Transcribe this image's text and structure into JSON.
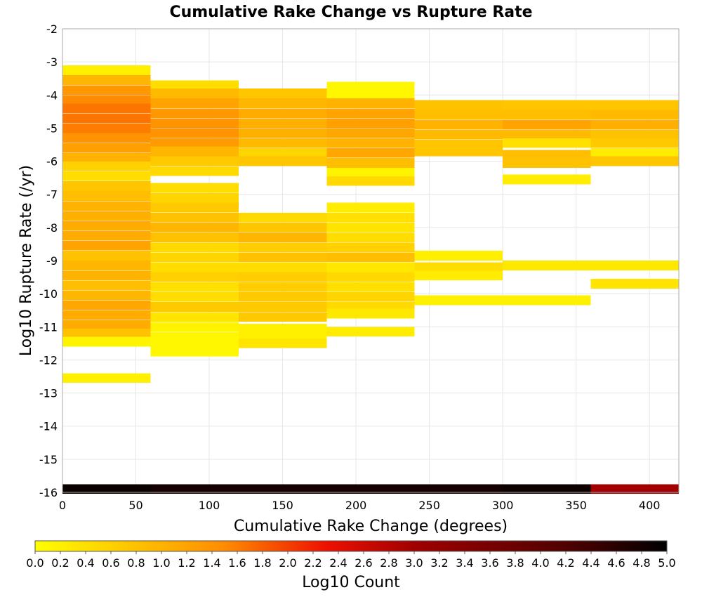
{
  "chart_data": {
    "type": "heatmap",
    "title": "Cumulative Rake Change vs Rupture Rate",
    "xlabel": "Cumulative Rake Change (degrees)",
    "ylabel": "Log10 Rupture Rate (/yr)",
    "xlim": [
      0,
      420
    ],
    "ylim": [
      -16,
      -2
    ],
    "x_ticks": [
      "0",
      "50",
      "100",
      "150",
      "200",
      "250",
      "300",
      "350",
      "400"
    ],
    "x_tick_values": [
      0,
      50,
      100,
      150,
      200,
      250,
      300,
      350,
      400
    ],
    "y_ticks": [
      "-2",
      "-3",
      "-4",
      "-5",
      "-6",
      "-7",
      "-8",
      "-9",
      "-10",
      "-11",
      "-12",
      "-13",
      "-14",
      "-15",
      "-16"
    ],
    "y_tick_values": [
      -2,
      -3,
      -4,
      -5,
      -6,
      -7,
      -8,
      -9,
      -10,
      -11,
      -12,
      -13,
      -14,
      -15,
      -16
    ],
    "grid": true,
    "x_bin_width": 60,
    "y_bin_height": 0.29,
    "colorbar": {
      "label": "Log10 Count",
      "min": 0.0,
      "max": 5.0,
      "ticks": [
        "0.0",
        "0.2",
        "0.4",
        "0.6",
        "0.8",
        "1.0",
        "1.2",
        "1.4",
        "1.6",
        "1.8",
        "2.0",
        "2.2",
        "2.4",
        "2.6",
        "2.8",
        "3.0",
        "3.2",
        "3.4",
        "3.6",
        "3.8",
        "4.0",
        "4.2",
        "4.4",
        "4.6",
        "4.8",
        "5.0"
      ],
      "tick_values": [
        0.0,
        0.2,
        0.4,
        0.6,
        0.8,
        1.0,
        1.2,
        1.4,
        1.6,
        1.8,
        2.0,
        2.2,
        2.4,
        2.6,
        2.8,
        3.0,
        3.2,
        3.4,
        3.6,
        3.8,
        4.0,
        4.2,
        4.4,
        4.6,
        4.8,
        5.0
      ],
      "color_stops": [
        {
          "v": 0.0,
          "c": "#ffff00"
        },
        {
          "v": 1.5,
          "c": "#ff8c00"
        },
        {
          "v": 2.3,
          "c": "#ee1100"
        },
        {
          "v": 3.0,
          "c": "#a00000"
        },
        {
          "v": 4.2,
          "c": "#500000"
        },
        {
          "v": 5.0,
          "c": "#000000"
        }
      ]
    },
    "columns": [
      {
        "x0": 0,
        "cells": [
          [
            -3.25,
            0.2
          ],
          [
            -3.55,
            0.95
          ],
          [
            -3.85,
            1.35
          ],
          [
            -4.15,
            1.5
          ],
          [
            -4.4,
            1.65
          ],
          [
            -4.7,
            1.65
          ],
          [
            -5.0,
            1.6
          ],
          [
            -5.3,
            1.4
          ],
          [
            -5.6,
            1.25
          ],
          [
            -5.9,
            1.0
          ],
          [
            -6.15,
            0.6
          ],
          [
            -6.45,
            0.45
          ],
          [
            -6.75,
            0.75
          ],
          [
            -7.05,
            0.85
          ],
          [
            -7.35,
            1.0
          ],
          [
            -7.65,
            1.05
          ],
          [
            -7.95,
            1.1
          ],
          [
            -8.25,
            1.1
          ],
          [
            -8.55,
            1.2
          ],
          [
            -8.85,
            0.8
          ],
          [
            -9.15,
            0.95
          ],
          [
            -9.45,
            1.0
          ],
          [
            -9.75,
            0.85
          ],
          [
            -10.05,
            0.95
          ],
          [
            -10.35,
            1.15
          ],
          [
            -10.65,
            1.1
          ],
          [
            -10.95,
            1.1
          ],
          [
            -11.2,
            0.8
          ],
          [
            -11.45,
            0.15
          ],
          [
            -12.55,
            0.2
          ],
          [
            -15.9,
            4.9
          ]
        ]
      },
      {
        "x0": 60,
        "cells": [
          [
            -3.7,
            0.45
          ],
          [
            -3.95,
            0.9
          ],
          [
            -4.25,
            1.2
          ],
          [
            -4.55,
            1.35
          ],
          [
            -4.85,
            1.4
          ],
          [
            -5.15,
            1.4
          ],
          [
            -5.45,
            1.3
          ],
          [
            -5.7,
            0.95
          ],
          [
            -6.0,
            0.7
          ],
          [
            -6.3,
            0.5
          ],
          [
            -6.8,
            0.45
          ],
          [
            -7.1,
            0.55
          ],
          [
            -7.4,
            0.7
          ],
          [
            -7.7,
            0.8
          ],
          [
            -8.0,
            0.95
          ],
          [
            -8.3,
            0.8
          ],
          [
            -8.6,
            0.5
          ],
          [
            -8.9,
            0.55
          ],
          [
            -9.2,
            0.45
          ],
          [
            -9.5,
            0.6
          ],
          [
            -9.8,
            0.4
          ],
          [
            -10.1,
            0.45
          ],
          [
            -10.4,
            0.7
          ],
          [
            -10.7,
            0.35
          ],
          [
            -11.0,
            0.15
          ],
          [
            -11.3,
            0.1
          ],
          [
            -11.55,
            0.1
          ],
          [
            -11.75,
            0.1
          ],
          [
            -15.9,
            4.8
          ]
        ]
      },
      {
        "x0": 120,
        "cells": [
          [
            -3.95,
            0.75
          ],
          [
            -4.25,
            0.95
          ],
          [
            -4.55,
            1.1
          ],
          [
            -4.85,
            1.05
          ],
          [
            -5.15,
            1.05
          ],
          [
            -5.45,
            0.9
          ],
          [
            -5.75,
            0.55
          ],
          [
            -6.0,
            0.75
          ],
          [
            -7.7,
            0.5
          ],
          [
            -8.0,
            0.75
          ],
          [
            -8.3,
            0.95
          ],
          [
            -8.6,
            0.65
          ],
          [
            -8.9,
            0.8
          ],
          [
            -9.2,
            0.45
          ],
          [
            -9.5,
            0.65
          ],
          [
            -9.8,
            0.65
          ],
          [
            -10.1,
            0.7
          ],
          [
            -10.4,
            0.7
          ],
          [
            -10.7,
            0.7
          ],
          [
            -11.05,
            0.2
          ],
          [
            -11.3,
            0.2
          ],
          [
            -11.5,
            0.35
          ],
          [
            -15.9,
            4.8
          ]
        ]
      },
      {
        "x0": 180,
        "cells": [
          [
            -3.75,
            0.1
          ],
          [
            -4.0,
            0.1
          ],
          [
            -4.25,
            1.0
          ],
          [
            -4.55,
            1.2
          ],
          [
            -4.85,
            1.25
          ],
          [
            -5.15,
            1.15
          ],
          [
            -5.45,
            1.0
          ],
          [
            -5.75,
            1.15
          ],
          [
            -6.05,
            0.85
          ],
          [
            -6.35,
            0.15
          ],
          [
            -6.6,
            0.5
          ],
          [
            -7.4,
            0.25
          ],
          [
            -7.7,
            0.4
          ],
          [
            -8.0,
            0.35
          ],
          [
            -8.3,
            0.45
          ],
          [
            -8.6,
            0.6
          ],
          [
            -8.9,
            0.85
          ],
          [
            -9.2,
            0.3
          ],
          [
            -9.5,
            0.5
          ],
          [
            -9.8,
            0.4
          ],
          [
            -10.1,
            0.55
          ],
          [
            -10.4,
            0.5
          ],
          [
            -10.6,
            0.3
          ],
          [
            -11.15,
            0.25
          ],
          [
            -15.9,
            4.8
          ]
        ]
      },
      {
        "x0": 240,
        "cells": [
          [
            -4.3,
            0.8
          ],
          [
            -4.6,
            0.85
          ],
          [
            -4.9,
            1.0
          ],
          [
            -5.2,
            0.9
          ],
          [
            -5.5,
            0.75
          ],
          [
            -5.7,
            0.75
          ],
          [
            -8.85,
            0.2
          ],
          [
            -9.2,
            0.45
          ],
          [
            -9.45,
            0.25
          ],
          [
            -10.2,
            0.2
          ],
          [
            -15.9,
            4.8
          ]
        ]
      },
      {
        "x0": 300,
        "cells": [
          [
            -4.3,
            0.75
          ],
          [
            -4.6,
            0.85
          ],
          [
            -4.9,
            1.2
          ],
          [
            -5.2,
            0.9
          ],
          [
            -5.45,
            0.4
          ],
          [
            -5.8,
            0.85
          ],
          [
            -6.05,
            0.8
          ],
          [
            -6.55,
            0.25
          ],
          [
            -9.15,
            0.3
          ],
          [
            -10.2,
            0.2
          ],
          [
            -15.9,
            4.85
          ]
        ]
      },
      {
        "x0": 360,
        "cells": [
          [
            -4.3,
            0.75
          ],
          [
            -4.6,
            0.9
          ],
          [
            -4.9,
            1.05
          ],
          [
            -5.2,
            0.8
          ],
          [
            -5.45,
            0.7
          ],
          [
            -5.75,
            0.25
          ],
          [
            -6.0,
            0.75
          ],
          [
            -9.15,
            0.3
          ],
          [
            -9.7,
            0.35
          ],
          [
            -15.9,
            3.0
          ]
        ]
      }
    ]
  }
}
